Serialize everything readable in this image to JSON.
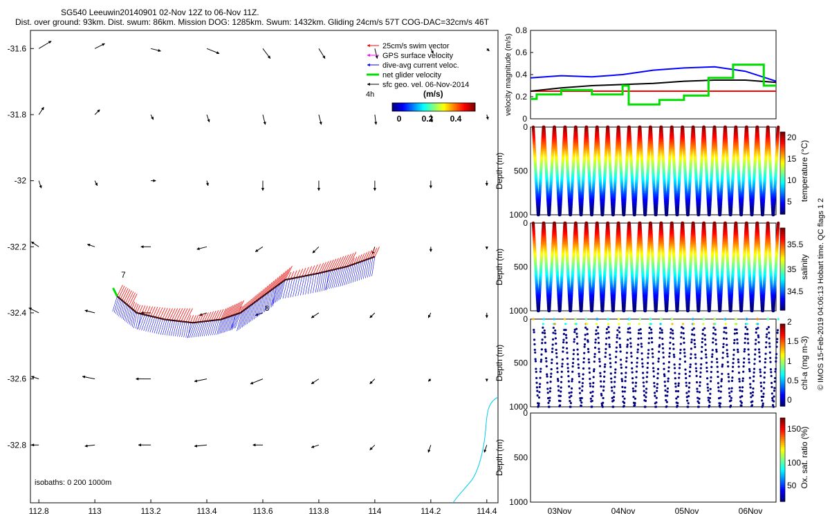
{
  "header": {
    "line1": "SG540 Leeuwin20140901 02-Nov 12Z to 06-Nov 11Z.",
    "line2": "Dist. over ground: 93km. Dist. swum: 86km. Mission DOG: 1285km. Swum: 1432km. Gliding 24cm/s 57T COG-DAC=32cm/s 46T"
  },
  "colors": {
    "swim": "#ff0000",
    "gps": "#ff00ff",
    "dac": "#0000ff",
    "net": "#00dd00",
    "geo": "#000000",
    "coast": "#00ccee"
  },
  "map": {
    "legend": [
      {
        "label": "25cm/s swim vector",
        "color": "#ff0000"
      },
      {
        "label": "GPS surface velocity",
        "color": "#ff00ff"
      },
      {
        "label": "dive-avg current veloc.",
        "color": "#0000ff"
      },
      {
        "label": "net glider velocity",
        "color": "#00dd00"
      },
      {
        "label": "sfc geo. vel. 06-Nov-2014",
        "color": "#000000"
      }
    ],
    "interval_label": "4h",
    "colorbar_title": "(m/s)",
    "colorbar_ticks": [
      "0",
      "0.2",
      "0.4"
    ],
    "isobaths_label": "isobaths: 0    200  1000m",
    "start_label": "7",
    "end_label": "8",
    "x_ticks": [
      "112.8",
      "113",
      "113.2",
      "113.4",
      "113.6",
      "113.8",
      "114",
      "114.2",
      "114.4"
    ],
    "y_ticks": [
      "-31.6",
      "-31.8",
      "-32",
      "-32.2",
      "-32.4",
      "-32.6",
      "-32.8"
    ],
    "xlim": [
      112.77,
      114.44
    ],
    "ylim": [
      -32.975,
      -31.545
    ]
  },
  "panels": {
    "velocity": {
      "ylabel": "velocity magnitude (m/s)",
      "y_ticks": [
        "0",
        "0.2",
        "0.4",
        "0.6",
        "0.8"
      ]
    },
    "temperature": {
      "ylabel": "Depth (m)",
      "cblabel": "temperature (°C)",
      "depth_ticks": [
        "0",
        "500",
        "1000"
      ],
      "cb_ticks": [
        "5",
        "10",
        "15",
        "20"
      ]
    },
    "salinity": {
      "ylabel": "Depth (m)",
      "cblabel": "salinity",
      "depth_ticks": [
        "0",
        "500",
        "1000"
      ],
      "cb_ticks": [
        "34.5",
        "35",
        "35.5"
      ]
    },
    "chla": {
      "ylabel": "Depth (m)",
      "cblabel": "chl-a (mg m-3)",
      "depth_ticks": [
        "0",
        "500",
        "1000"
      ],
      "cb_ticks": [
        "0",
        "0.5",
        "1",
        "1.5",
        "2"
      ]
    },
    "oxygen": {
      "ylabel": "Depth (m)",
      "cblabel": "Ox. sat. ratio (%)",
      "depth_ticks": [
        "0",
        "500",
        "1000"
      ],
      "cb_ticks": [
        "50",
        "100",
        "150"
      ]
    },
    "time_ticks": [
      "03Nov",
      "04Nov",
      "05Nov",
      "06Nov"
    ],
    "side_label": "© IMOS 15-Feb-2019 04:06:13 Hobart time. QC flags 1  2"
  },
  "chart_data": [
    {
      "type": "scatter",
      "name_hint": "map",
      "xlim": [
        112.77,
        114.44
      ],
      "ylim": [
        -32.975,
        -31.545
      ],
      "glider_track": {
        "x": [
          113.08,
          113.15,
          113.25,
          113.35,
          113.45,
          113.52,
          113.6,
          113.68,
          113.8,
          113.9,
          114.0
        ],
        "y": [
          -32.35,
          -32.4,
          -32.42,
          -32.43,
          -32.42,
          -32.4,
          -32.35,
          -32.3,
          -32.28,
          -32.26,
          -32.23
        ]
      },
      "geostrophic_grid": {
        "lon": [
          112.8,
          113,
          113.2,
          113.4,
          113.6,
          113.8,
          114,
          114.2,
          114.4
        ],
        "lat": [
          -31.6,
          -31.8,
          -32.0,
          -32.2,
          -32.4,
          -32.6,
          -32.8
        ],
        "u": [
          [
            0.1,
            0.08,
            0.08,
            0.1,
            0.06,
            0.05,
            0.02,
            0.02,
            0.02
          ],
          [
            0.04,
            0.04,
            0.02,
            0.02,
            0.02,
            0.02,
            0.01,
            0.01,
            0.01
          ],
          [
            0.02,
            0.02,
            0.04,
            0.01,
            0.0,
            0.0,
            0.0,
            0.0,
            0.0
          ],
          [
            -0.06,
            -0.06,
            -0.08,
            -0.08,
            -0.06,
            -0.05,
            -0.02,
            0.0,
            0.0
          ],
          [
            -0.08,
            -0.08,
            -0.08,
            -0.06,
            -0.06,
            -0.06,
            -0.04,
            -0.02,
            0.0
          ],
          [
            -0.06,
            -0.1,
            -0.12,
            -0.1,
            -0.1,
            -0.06,
            -0.04,
            -0.02,
            0.0
          ],
          [
            -0.06,
            -0.08,
            -0.1,
            -0.1,
            -0.08,
            -0.06,
            -0.04,
            -0.02,
            -0.02
          ]
        ],
        "v": [
          [
            0.06,
            0.04,
            -0.02,
            -0.04,
            -0.08,
            -0.08,
            -0.08,
            -0.04,
            -0.02
          ],
          [
            0.06,
            0.04,
            -0.04,
            -0.06,
            -0.08,
            -0.08,
            -0.08,
            -0.06,
            -0.04
          ],
          [
            -0.06,
            -0.04,
            0.0,
            -0.04,
            -0.08,
            -0.08,
            -0.08,
            -0.06,
            -0.04
          ],
          [
            0.04,
            0.02,
            0.0,
            -0.02,
            -0.04,
            -0.05,
            -0.06,
            -0.04,
            -0.02
          ],
          [
            0.04,
            0.02,
            0.0,
            -0.02,
            -0.02,
            -0.04,
            -0.04,
            -0.04,
            -0.04
          ],
          [
            0.02,
            0.02,
            0.0,
            -0.02,
            -0.04,
            -0.04,
            -0.04,
            -0.02,
            -0.02
          ],
          [
            0.0,
            -0.01,
            0.0,
            -0.01,
            0.0,
            -0.02,
            -0.04,
            -0.06,
            -0.06
          ]
        ]
      }
    },
    {
      "type": "line",
      "name_hint": "velocity",
      "xlim": [
        0,
        4
      ],
      "ylim": [
        0,
        0.8
      ],
      "series": [
        {
          "color": "#ff0000",
          "x": [
            0,
            4
          ],
          "y": [
            0.25,
            0.25
          ]
        },
        {
          "color": "#0000ff",
          "x": [
            0,
            0.5,
            1,
            1.5,
            2,
            2.5,
            3,
            3.5,
            4
          ],
          "y": [
            0.37,
            0.39,
            0.38,
            0.4,
            0.44,
            0.46,
            0.47,
            0.43,
            0.34
          ]
        },
        {
          "color": "#000000",
          "x": [
            0,
            0.5,
            1,
            1.5,
            2,
            2.5,
            3,
            3.5,
            4
          ],
          "y": [
            0.25,
            0.28,
            0.3,
            0.31,
            0.32,
            0.34,
            0.35,
            0.35,
            0.33
          ]
        },
        {
          "color": "#00dd00",
          "x": [
            0,
            0.1,
            0.1,
            0.5,
            0.5,
            1,
            1,
            1.5,
            1.5,
            1.6,
            1.6,
            2.1,
            2.1,
            2.5,
            2.5,
            2.9,
            2.9,
            3.3,
            3.3,
            3.8,
            3.8,
            4
          ],
          "y": [
            0.18,
            0.18,
            0.22,
            0.22,
            0.26,
            0.26,
            0.22,
            0.22,
            0.3,
            0.3,
            0.13,
            0.13,
            0.17,
            0.17,
            0.21,
            0.21,
            0.37,
            0.37,
            0.49,
            0.49,
            0.3,
            0.3
          ]
        }
      ]
    },
    {
      "type": "scatter",
      "name_hint": "profiles",
      "x_range_days": [
        0,
        4
      ],
      "depth_range_m": [
        0,
        1000
      ],
      "dive_count": 23,
      "max_depth_m": 1000
    }
  ]
}
